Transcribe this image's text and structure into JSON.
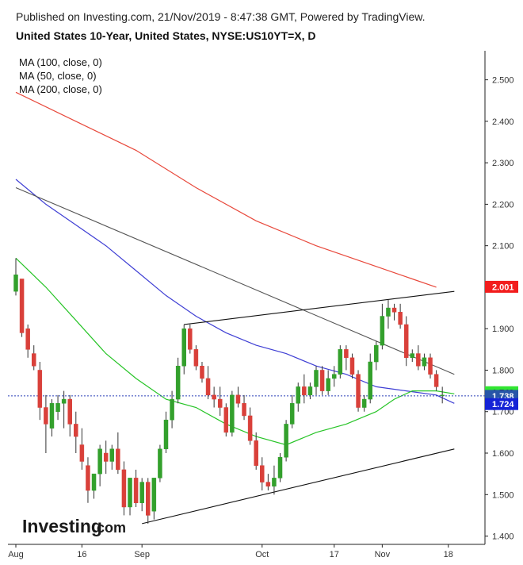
{
  "header": {
    "published": "Published on Investing.com, 21/Nov/2019 - 8:47:38 GMT, Powered by TradingView.",
    "title": "United States 10-Year, United States, NYSE:US10YT=X, D"
  },
  "logo": {
    "text": "Investing",
    "suffix": ".com"
  },
  "colors": {
    "up": "#33a02c",
    "down": "#d9403a",
    "ma100": "#3f3fd4",
    "ma50": "#27c427",
    "ma200": "#e8493c",
    "current_line": "#2a3fb8",
    "badge_ma200": "#f21d1d",
    "badge_ma50": "#31e631",
    "badge_price": "#2855a8",
    "badge_low": "#1523d6"
  },
  "chart_data": {
    "type": "candlestick",
    "title": "United States 10-Year, United States, NYSE:US10YT=X, D",
    "ylim": [
      1.38,
      2.57
    ],
    "y_ticks": [
      "2.500",
      "2.400",
      "2.300",
      "2.200",
      "2.100",
      "2.000",
      "1.900",
      "1.800",
      "1.700",
      "1.600",
      "1.500",
      "1.400"
    ],
    "x_ticks": [
      {
        "label": "Aug",
        "index": 0
      },
      {
        "label": "16",
        "index": 11
      },
      {
        "label": "Sep",
        "index": 21
      },
      {
        "label": "Oct",
        "index": 41
      },
      {
        "label": "17",
        "index": 53
      },
      {
        "label": "Nov",
        "index": 61
      },
      {
        "label": "18",
        "index": 72
      }
    ],
    "legend": [
      "MA (100, close, 0)",
      "MA (50, close, 0)",
      "MA (200, close, 0)"
    ],
    "last_close": 1.738,
    "price_labels": [
      {
        "key": "ma200",
        "text": "2.001",
        "value": 2.001
      },
      {
        "key": "ma50",
        "text": "1.743",
        "value": 1.743
      },
      {
        "key": "price",
        "text": "1.738",
        "value": 1.738
      },
      {
        "key": "low",
        "text": "1.724",
        "value": 1.724
      }
    ],
    "candles": [
      [
        1.99,
        2.07,
        1.98,
        2.03
      ],
      [
        2.02,
        2.02,
        1.88,
        1.89
      ],
      [
        1.9,
        1.91,
        1.83,
        1.85
      ],
      [
        1.84,
        1.86,
        1.8,
        1.81
      ],
      [
        1.8,
        1.82,
        1.68,
        1.71
      ],
      [
        1.71,
        1.74,
        1.6,
        1.67
      ],
      [
        1.66,
        1.73,
        1.64,
        1.72
      ],
      [
        1.7,
        1.74,
        1.68,
        1.72
      ],
      [
        1.72,
        1.75,
        1.66,
        1.73
      ],
      [
        1.73,
        1.74,
        1.64,
        1.67
      ],
      [
        1.67,
        1.7,
        1.6,
        1.64
      ],
      [
        1.62,
        1.66,
        1.56,
        1.58
      ],
      [
        1.57,
        1.59,
        1.48,
        1.51
      ],
      [
        1.51,
        1.55,
        1.49,
        1.55
      ],
      [
        1.55,
        1.62,
        1.52,
        1.61
      ],
      [
        1.6,
        1.63,
        1.55,
        1.58
      ],
      [
        1.58,
        1.62,
        1.56,
        1.61
      ],
      [
        1.61,
        1.65,
        1.55,
        1.56
      ],
      [
        1.56,
        1.58,
        1.45,
        1.47
      ],
      [
        1.47,
        1.53,
        1.45,
        1.54
      ],
      [
        1.54,
        1.56,
        1.47,
        1.48
      ],
      [
        1.48,
        1.54,
        1.46,
        1.53
      ],
      [
        1.53,
        1.54,
        1.43,
        1.45
      ],
      [
        1.46,
        1.54,
        1.44,
        1.54
      ],
      [
        1.54,
        1.62,
        1.53,
        1.61
      ],
      [
        1.61,
        1.7,
        1.6,
        1.68
      ],
      [
        1.68,
        1.75,
        1.66,
        1.73
      ],
      [
        1.73,
        1.83,
        1.72,
        1.81
      ],
      [
        1.81,
        1.91,
        1.79,
        1.9
      ],
      [
        1.9,
        1.91,
        1.84,
        1.85
      ],
      [
        1.85,
        1.86,
        1.8,
        1.81
      ],
      [
        1.81,
        1.82,
        1.77,
        1.78
      ],
      [
        1.78,
        1.81,
        1.73,
        1.74
      ],
      [
        1.74,
        1.76,
        1.71,
        1.73
      ],
      [
        1.73,
        1.76,
        1.69,
        1.71
      ],
      [
        1.71,
        1.72,
        1.64,
        1.65
      ],
      [
        1.65,
        1.75,
        1.64,
        1.74
      ],
      [
        1.74,
        1.76,
        1.71,
        1.72
      ],
      [
        1.72,
        1.74,
        1.68,
        1.69
      ],
      [
        1.69,
        1.71,
        1.62,
        1.63
      ],
      [
        1.63,
        1.65,
        1.56,
        1.57
      ],
      [
        1.57,
        1.59,
        1.51,
        1.53
      ],
      [
        1.53,
        1.55,
        1.51,
        1.52
      ],
      [
        1.52,
        1.57,
        1.5,
        1.54
      ],
      [
        1.54,
        1.6,
        1.53,
        1.59
      ],
      [
        1.59,
        1.68,
        1.58,
        1.67
      ],
      [
        1.67,
        1.74,
        1.66,
        1.72
      ],
      [
        1.72,
        1.77,
        1.7,
        1.76
      ],
      [
        1.76,
        1.79,
        1.72,
        1.74
      ],
      [
        1.74,
        1.77,
        1.73,
        1.76
      ],
      [
        1.76,
        1.81,
        1.74,
        1.8
      ],
      [
        1.8,
        1.81,
        1.74,
        1.75
      ],
      [
        1.75,
        1.8,
        1.74,
        1.78
      ],
      [
        1.78,
        1.81,
        1.76,
        1.79
      ],
      [
        1.79,
        1.86,
        1.78,
        1.85
      ],
      [
        1.85,
        1.86,
        1.8,
        1.83
      ],
      [
        1.83,
        1.84,
        1.78,
        1.79
      ],
      [
        1.79,
        1.8,
        1.7,
        1.71
      ],
      [
        1.71,
        1.74,
        1.7,
        1.73
      ],
      [
        1.73,
        1.84,
        1.72,
        1.82
      ],
      [
        1.82,
        1.87,
        1.8,
        1.86
      ],
      [
        1.86,
        1.96,
        1.85,
        1.93
      ],
      [
        1.93,
        1.97,
        1.9,
        1.95
      ],
      [
        1.95,
        1.96,
        1.92,
        1.94
      ],
      [
        1.94,
        1.96,
        1.9,
        1.91
      ],
      [
        1.91,
        1.93,
        1.81,
        1.83
      ],
      [
        1.83,
        1.85,
        1.82,
        1.84
      ],
      [
        1.84,
        1.86,
        1.8,
        1.81
      ],
      [
        1.81,
        1.84,
        1.8,
        1.83
      ],
      [
        1.83,
        1.84,
        1.78,
        1.79
      ],
      [
        1.79,
        1.8,
        1.75,
        1.76
      ],
      [
        1.74,
        1.76,
        1.72,
        1.74
      ]
    ],
    "ma100": [
      [
        0,
        2.26
      ],
      [
        5,
        2.2
      ],
      [
        10,
        2.15
      ],
      [
        15,
        2.1
      ],
      [
        20,
        2.04
      ],
      [
        25,
        1.98
      ],
      [
        30,
        1.93
      ],
      [
        35,
        1.89
      ],
      [
        40,
        1.86
      ],
      [
        45,
        1.84
      ],
      [
        50,
        1.81
      ],
      [
        55,
        1.79
      ],
      [
        60,
        1.76
      ],
      [
        65,
        1.75
      ],
      [
        70,
        1.74
      ],
      [
        73,
        1.72
      ]
    ],
    "ma50": [
      [
        0,
        2.07
      ],
      [
        5,
        2.0
      ],
      [
        10,
        1.92
      ],
      [
        15,
        1.84
      ],
      [
        20,
        1.78
      ],
      [
        25,
        1.73
      ],
      [
        30,
        1.71
      ],
      [
        35,
        1.67
      ],
      [
        40,
        1.64
      ],
      [
        45,
        1.62
      ],
      [
        50,
        1.65
      ],
      [
        55,
        1.67
      ],
      [
        60,
        1.7
      ],
      [
        63,
        1.73
      ],
      [
        66,
        1.75
      ],
      [
        70,
        1.75
      ],
      [
        73,
        1.743
      ]
    ],
    "ma200": [
      [
        0,
        2.47
      ],
      [
        10,
        2.4
      ],
      [
        20,
        2.33
      ],
      [
        30,
        2.24
      ],
      [
        40,
        2.16
      ],
      [
        50,
        2.1
      ],
      [
        60,
        2.05
      ],
      [
        66,
        2.02
      ],
      [
        70,
        2.0
      ]
    ],
    "trendlines": [
      {
        "from": [
          0,
          2.24
        ],
        "to": [
          73,
          1.79
        ],
        "role": "resistance",
        "color": "#555555"
      },
      {
        "from": [
          28,
          1.91
        ],
        "to": [
          73,
          1.99
        ],
        "role": "upper-channel",
        "color": "#111111"
      },
      {
        "from": [
          21,
          1.43
        ],
        "to": [
          73,
          1.61
        ],
        "role": "lower-channel",
        "color": "#111111"
      }
    ]
  }
}
